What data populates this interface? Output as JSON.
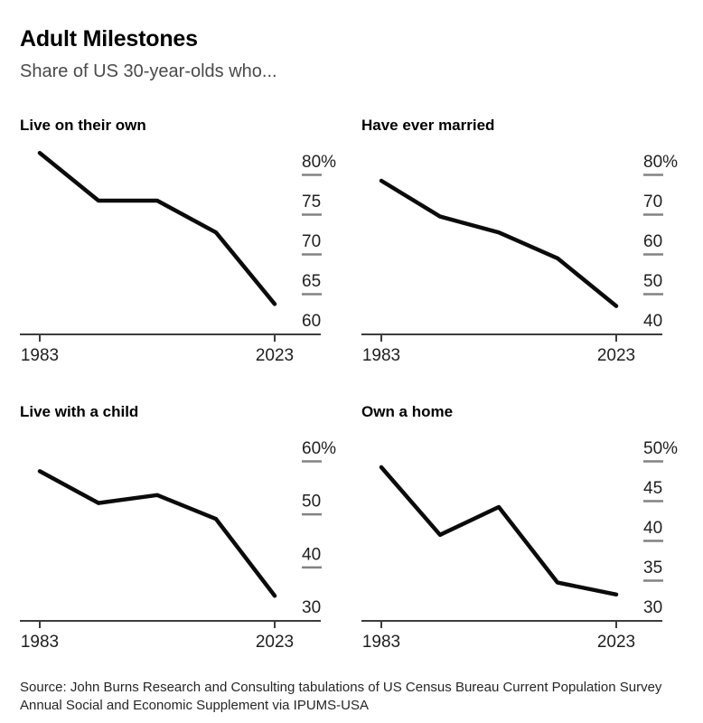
{
  "header": {
    "title": "Adult Milestones",
    "subtitle": "Share of US 30-year-olds who..."
  },
  "source": {
    "lines": [
      "Source: John Burns Research and Consulting tabulations of US Census Bureau Current Population Survey",
      "Annual Social and Economic Supplement via IPUMS-USA"
    ]
  },
  "colors": {
    "line": "#0b0b0b",
    "axis": "#3d3d3d",
    "tick_dash": "#828282",
    "tick_text": "#1f1f1f",
    "xlabel_text": "#1f1f1f"
  },
  "chart_data": [
    {
      "type": "line",
      "title": "Live on their own",
      "unit": "%",
      "x": [
        1983,
        1993,
        2003,
        2013,
        2023
      ],
      "values": [
        81,
        75,
        75,
        71,
        62
      ],
      "xtick_labels": [
        "1983",
        "2023"
      ],
      "xlim": [
        1983,
        2023
      ],
      "ylim": [
        58,
        83
      ],
      "yticks": [
        {
          "label": "80%",
          "value": 80
        },
        {
          "label": "75",
          "value": 75
        },
        {
          "label": "70",
          "value": 70
        },
        {
          "label": "65",
          "value": 65
        },
        {
          "label": "60",
          "value": 60
        }
      ],
      "legend": "none",
      "grid": "off"
    },
    {
      "type": "line",
      "title": "Have ever married",
      "unit": "%",
      "x": [
        1983,
        1993,
        2003,
        2013,
        2023
      ],
      "values": [
        75,
        66,
        62,
        55.5,
        43.5
      ],
      "xtick_labels": [
        "1983",
        "2023"
      ],
      "xlim": [
        1983,
        2023
      ],
      "ylim": [
        36,
        85
      ],
      "yticks": [
        {
          "label": "80%",
          "value": 80
        },
        {
          "label": "70",
          "value": 70
        },
        {
          "label": "60",
          "value": 60
        },
        {
          "label": "50",
          "value": 50
        },
        {
          "label": "40",
          "value": 40
        }
      ],
      "legend": "none",
      "grid": "off"
    },
    {
      "type": "line",
      "title": "Live with a child",
      "unit": "%",
      "x": [
        1983,
        1993,
        2003,
        2013,
        2023
      ],
      "values": [
        55.5,
        49.5,
        51,
        46.5,
        32
      ],
      "xtick_labels": [
        "1983",
        "2023"
      ],
      "xlim": [
        1983,
        2023
      ],
      "ylim": [
        27,
        64
      ],
      "yticks": [
        {
          "label": "60%",
          "value": 60
        },
        {
          "label": "50",
          "value": 50
        },
        {
          "label": "40",
          "value": 40
        },
        {
          "label": "30",
          "value": 30
        }
      ],
      "legend": "none",
      "grid": "off"
    },
    {
      "type": "line",
      "title": "Own a home",
      "unit": "%",
      "x": [
        1983,
        1993,
        2003,
        2013,
        2023
      ],
      "values": [
        47.5,
        39,
        42.5,
        33,
        31.5
      ],
      "xtick_labels": [
        "1983",
        "2023"
      ],
      "xlim": [
        1983,
        2023
      ],
      "ylim": [
        28,
        53
      ],
      "yticks": [
        {
          "label": "50%",
          "value": 50
        },
        {
          "label": "45",
          "value": 45
        },
        {
          "label": "40",
          "value": 40
        },
        {
          "label": "35",
          "value": 35
        },
        {
          "label": "30",
          "value": 30
        }
      ],
      "legend": "none",
      "grid": "off"
    }
  ]
}
